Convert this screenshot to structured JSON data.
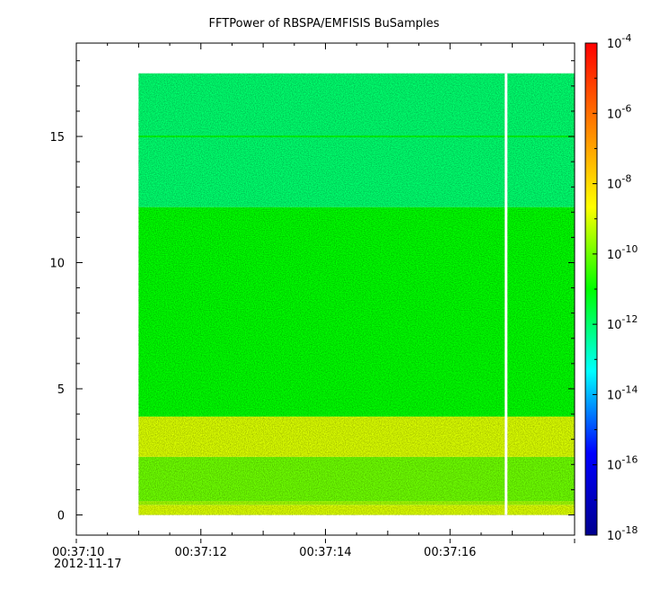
{
  "chart_data": {
    "type": "heatmap",
    "title": "FFTPower of RBSPA/EMFISIS  BuSamples",
    "xlabel": "",
    "ylabel": "",
    "x_tick_labels": [
      "00:37:10",
      "00:37:12",
      "00:37:14",
      "00:37:16"
    ],
    "x_date_label": "2012-11-17",
    "x_range": [
      "00:37:10",
      "00:37:18"
    ],
    "y_ticks": [
      0,
      5,
      10,
      15
    ],
    "ylim": [
      -0.8,
      18.7
    ],
    "colorbar": {
      "scale": "log",
      "range": [
        1e-18,
        0.0001
      ],
      "tick_labels": [
        {
          "base": "10",
          "exp": "-4"
        },
        {
          "base": "10",
          "exp": "-6"
        },
        {
          "base": "10",
          "exp": "-8"
        },
        {
          "base": "10",
          "exp": "-10"
        },
        {
          "base": "10",
          "exp": "-12"
        },
        {
          "base": "10",
          "exp": "-14"
        },
        {
          "base": "10",
          "exp": "-16"
        },
        {
          "base": "10",
          "exp": "-18"
        }
      ],
      "colors": [
        "#00008f",
        "#0000ff",
        "#00ffff",
        "#00ff00",
        "#ffff00",
        "#ff8000",
        "#ff0000"
      ]
    },
    "data_extent": {
      "x_start": "00:37:11",
      "x_end": "00:37:18",
      "y_min": 0,
      "y_max": 17.5
    },
    "data_gap": {
      "x": "00:37:16.9"
    },
    "bands": [
      {
        "y_from": 0.0,
        "y_to": 0.4,
        "level": "1e-9"
      },
      {
        "y_from": 0.4,
        "y_to": 0.55,
        "level": "3e-10"
      },
      {
        "y_from": 0.55,
        "y_to": 2.3,
        "level": "1e-10"
      },
      {
        "y_from": 2.3,
        "y_to": 3.9,
        "level": "1e-9"
      },
      {
        "y_from": 3.9,
        "y_to": 12.2,
        "level": "1e-11"
      },
      {
        "y_from": 12.2,
        "y_to": 17.5,
        "level": "1e-12"
      }
    ],
    "line_feature": {
      "y": 15,
      "level": "1e-11"
    }
  }
}
